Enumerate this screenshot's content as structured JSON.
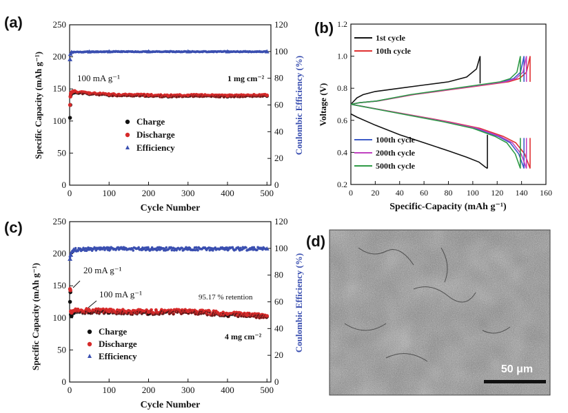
{
  "colors": {
    "charge": "#111111",
    "discharge": "#d62a2a",
    "efficiency": "#3a4fb0",
    "cycle1": "#111111",
    "cycle10": "#e03030",
    "cycle100": "#3d5bc8",
    "cycle200": "#c040c0",
    "cycle500": "#2e9a45"
  },
  "panel_a": {
    "label": "(a)",
    "rate_annotation": "100 mA g⁻¹",
    "loading_annotation": "1 mg cm⁻²"
  },
  "panel_b": {
    "label": "(b)"
  },
  "panel_c": {
    "label": "(c)",
    "rate_annotation_1": "20 mA g⁻¹",
    "rate_annotation_2": "100 mA g⁻¹",
    "retention_annotation": "95.17 % retention",
    "loading_annotation": "4 mg cm⁻²"
  },
  "panel_d": {
    "label": "(d)",
    "scale_bar": "50 μm"
  },
  "chart_data": [
    {
      "type": "scatter",
      "panel": "a",
      "xlabel": "Cycle Number",
      "ylabel": "Specific Capacity (mAh g⁻¹)",
      "y2label": "Coulombic Efficiency (%)",
      "xlim": [
        0,
        510
      ],
      "ylim": [
        0,
        250
      ],
      "y2lim": [
        0,
        120
      ],
      "xticks": [
        "0",
        "100",
        "200",
        "300",
        "400",
        "500"
      ],
      "yticks": [
        "0",
        "50",
        "100",
        "150",
        "200",
        "250"
      ],
      "y2ticks": [
        "0",
        "20",
        "40",
        "60",
        "80",
        "100",
        "120"
      ],
      "legend": [
        "Charge",
        "Discharge",
        "Efficiency"
      ],
      "legend_position": "center-left",
      "series": [
        {
          "name": "Charge",
          "x": [
            1,
            2,
            3,
            5,
            10,
            50,
            100,
            200,
            250,
            300,
            400,
            500
          ],
          "y": [
            105,
            125,
            140,
            143,
            144,
            142,
            140,
            139,
            138,
            139,
            138,
            139
          ]
        },
        {
          "name": "Discharge",
          "x": [
            1,
            2,
            3,
            5,
            10,
            50,
            100,
            200,
            250,
            300,
            400,
            500
          ],
          "y": [
            125,
            138,
            143,
            145,
            146,
            143,
            141,
            140,
            139,
            140,
            139,
            140
          ]
        },
        {
          "name": "Efficiency",
          "x": [
            1,
            2,
            5,
            50,
            100,
            200,
            300,
            400,
            500
          ],
          "y": [
            94,
            98,
            99.5,
            99.8,
            99.9,
            99.9,
            99.9,
            99.9,
            99.9
          ]
        }
      ]
    },
    {
      "type": "line",
      "panel": "b",
      "xlabel": "Specific-Capacity (mAh g⁻¹)",
      "ylabel": "Voltage (V)",
      "xlim": [
        0,
        160
      ],
      "ylim": [
        0.2,
        1.2
      ],
      "xticks": [
        "0",
        "20",
        "40",
        "60",
        "80",
        "100",
        "120",
        "140",
        "160"
      ],
      "yticks": [
        "0.2",
        "0.4",
        "0.6",
        "0.8",
        "1.0",
        "1.2"
      ],
      "legend": [
        "1st cycle",
        "10th cycle",
        "100th cycle",
        "200th cycle",
        "500th cycle"
      ],
      "legend_position": "top-left / bottom-left",
      "series": [
        {
          "name": "1st cycle",
          "charge_x": [
            0,
            5,
            10,
            20,
            40,
            60,
            80,
            95,
            103,
            106
          ],
          "charge_y": [
            0.7,
            0.74,
            0.76,
            0.78,
            0.8,
            0.82,
            0.84,
            0.87,
            0.92,
            1.0
          ],
          "discharge_x": [
            0,
            5,
            20,
            40,
            60,
            80,
            95,
            105,
            110,
            112
          ],
          "discharge_y": [
            0.64,
            0.62,
            0.57,
            0.51,
            0.46,
            0.41,
            0.37,
            0.34,
            0.31,
            0.3
          ]
        },
        {
          "name": "10th cycle",
          "end_capacity": 147
        },
        {
          "name": "100th cycle",
          "end_capacity": 142
        },
        {
          "name": "200th cycle",
          "end_capacity": 144
        },
        {
          "name": "500th cycle",
          "end_capacity": 139
        }
      ]
    },
    {
      "type": "scatter",
      "panel": "c",
      "xlabel": "Cycle Number",
      "ylabel": "Specific Capacity (mAh g⁻¹)",
      "y2label": "Coulombic Efficiency (%)",
      "xlim": [
        0,
        510
      ],
      "ylim": [
        0,
        250
      ],
      "y2lim": [
        0,
        120
      ],
      "xticks": [
        "0",
        "100",
        "200",
        "300",
        "400",
        "500"
      ],
      "yticks": [
        "0",
        "50",
        "100",
        "150",
        "200",
        "250"
      ],
      "y2ticks": [
        "0",
        "20",
        "40",
        "60",
        "80",
        "100",
        "120"
      ],
      "legend": [
        "Charge",
        "Discharge",
        "Efficiency"
      ],
      "legend_position": "lower-left",
      "series": [
        {
          "name": "Charge",
          "x": [
            1,
            2,
            3,
            5,
            10,
            50,
            100,
            200,
            300,
            400,
            450,
            500
          ],
          "y": [
            125,
            140,
            105,
            103,
            108,
            109,
            108,
            107,
            109,
            104,
            103,
            102
          ]
        },
        {
          "name": "Discharge",
          "x": [
            1,
            2,
            3,
            5,
            10,
            50,
            100,
            200,
            300,
            400,
            450,
            500
          ],
          "y": [
            145,
            143,
            110,
            108,
            111,
            111,
            110,
            109,
            110,
            106,
            104,
            103
          ]
        },
        {
          "name": "Efficiency",
          "x": [
            1,
            3,
            10,
            50,
            100,
            200,
            300,
            400,
            500
          ],
          "y": [
            92,
            95,
            99,
            99.5,
            99.7,
            99.6,
            99.7,
            99.7,
            99.7
          ]
        }
      ]
    }
  ]
}
